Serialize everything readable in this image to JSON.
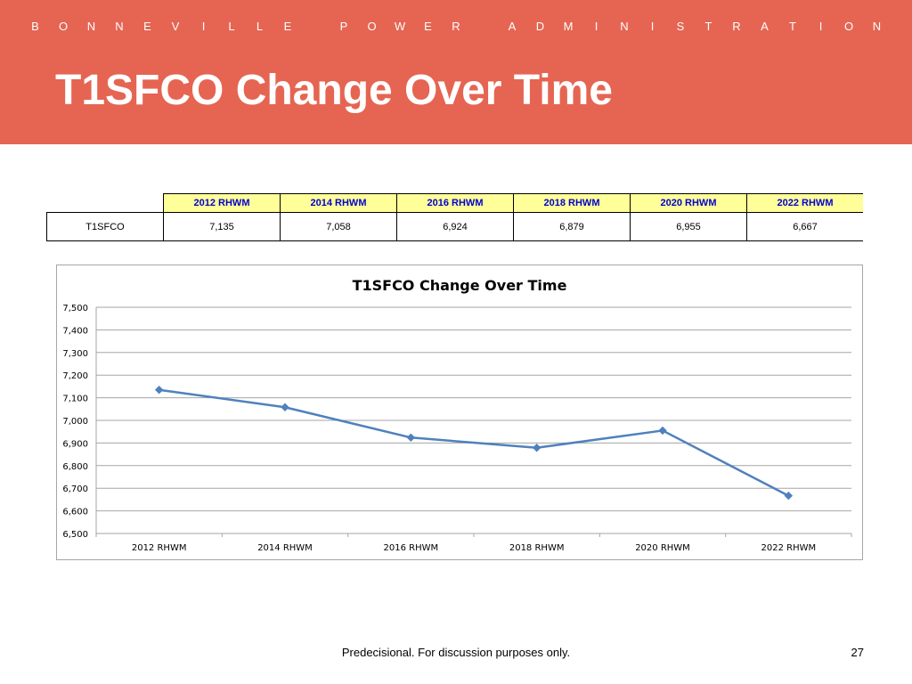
{
  "header": {
    "organization": "BONNEVILLE POWER ADMINISTRATION",
    "title": "T1SFCO Change Over Time",
    "colors": {
      "header_bg": "#e56552",
      "text": "#ffffff"
    }
  },
  "table": {
    "columns": [
      "2012 RHWM",
      "2014 RHWM",
      "2016 RHWM",
      "2018 RHWM",
      "2020 RHWM",
      "2022 RHWM"
    ],
    "rows": [
      {
        "label": "T1SFCO",
        "values": [
          "7,135",
          "7,058",
          "6,924",
          "6,879",
          "6,955",
          "6,667"
        ]
      }
    ],
    "colors": {
      "header_bg": "#ffff99",
      "header_text": "#0000cc"
    }
  },
  "chart_data": {
    "type": "line",
    "title": "T1SFCO Change Over Time",
    "categories": [
      "2012 RHWM",
      "2014 RHWM",
      "2016 RHWM",
      "2018 RHWM",
      "2020 RHWM",
      "2022 RHWM"
    ],
    "series": [
      {
        "values": [
          7135,
          7058,
          6924,
          6879,
          6955,
          6667
        ],
        "color": "#4f81bd"
      }
    ],
    "xlabel": "",
    "ylabel": "",
    "ylim": [
      6500,
      7500
    ],
    "yticks": [
      6500,
      6600,
      6700,
      6800,
      6900,
      7000,
      7100,
      7200,
      7300,
      7400,
      7500
    ],
    "ytick_labels": [
      "6,500",
      "6,600",
      "6,700",
      "6,800",
      "6,900",
      "7,000",
      "7,100",
      "7,200",
      "7,300",
      "7,400",
      "7,500"
    ],
    "grid": true,
    "legend": "none",
    "marker": "diamond"
  },
  "footer": {
    "note": "Predecisional. For discussion purposes only.",
    "page_number": "27"
  }
}
